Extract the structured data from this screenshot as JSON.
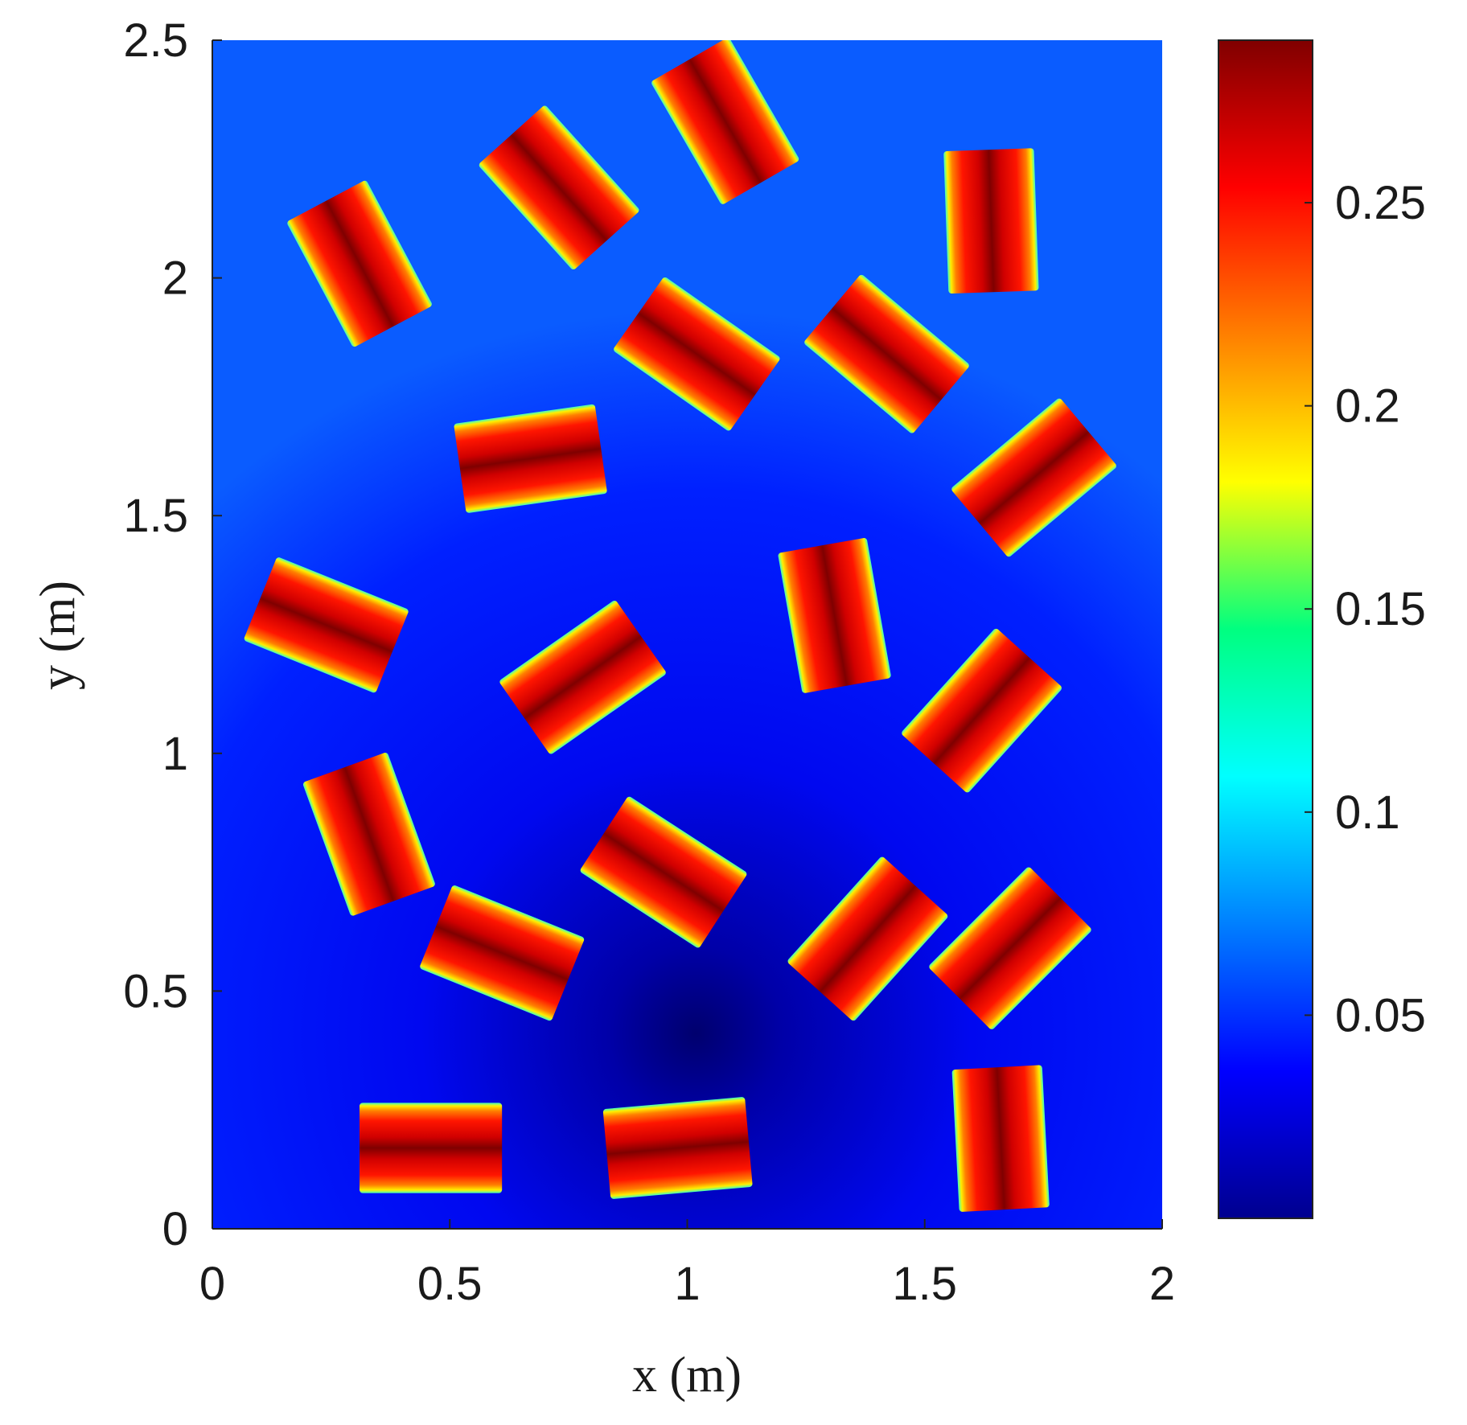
{
  "chart_data": {
    "type": "heatmap",
    "title": "",
    "xlabel": "x (m)",
    "ylabel": "y (m)",
    "xlim": [
      0,
      2
    ],
    "ylim": [
      0,
      2.5
    ],
    "x_ticks": [
      0,
      0.5,
      1,
      1.5,
      2
    ],
    "x_tick_labels": [
      "0",
      "0.5",
      "1",
      "1.5",
      "2"
    ],
    "y_ticks": [
      0,
      0.5,
      1,
      1.5,
      2,
      2.5
    ],
    "y_tick_labels": [
      "0",
      "0.5",
      "1",
      "1.5",
      "2",
      "2.5"
    ],
    "colorbar": {
      "colormap": "jet",
      "range": [
        0,
        0.29
      ],
      "ticks": [
        0.05,
        0.1,
        0.15,
        0.2,
        0.25
      ],
      "tick_labels": [
        "0.05",
        "0.1",
        "0.15",
        "0.2",
        "0.25"
      ]
    },
    "background": {
      "description": "low field, minimum near bottom centre",
      "min_location": [
        1.0,
        0.42
      ],
      "min_value": 0.005,
      "edge_value": 0.06
    },
    "inclusion_peak_value": 0.29,
    "inclusions": [
      {
        "cx": 0.31,
        "cy": 2.03,
        "width": 0.3,
        "height": 0.19,
        "angle_deg": -62
      },
      {
        "cx": 0.73,
        "cy": 2.19,
        "width": 0.3,
        "height": 0.19,
        "angle_deg": -48
      },
      {
        "cx": 1.08,
        "cy": 2.33,
        "width": 0.3,
        "height": 0.19,
        "angle_deg": -60
      },
      {
        "cx": 1.64,
        "cy": 2.12,
        "width": 0.3,
        "height": 0.19,
        "angle_deg": -88
      },
      {
        "cx": 1.02,
        "cy": 1.84,
        "width": 0.3,
        "height": 0.19,
        "angle_deg": -35
      },
      {
        "cx": 1.42,
        "cy": 1.84,
        "width": 0.3,
        "height": 0.19,
        "angle_deg": -40
      },
      {
        "cx": 0.67,
        "cy": 1.62,
        "width": 0.3,
        "height": 0.19,
        "angle_deg": 8
      },
      {
        "cx": 1.73,
        "cy": 1.58,
        "width": 0.3,
        "height": 0.19,
        "angle_deg": 40
      },
      {
        "cx": 0.24,
        "cy": 1.27,
        "width": 0.3,
        "height": 0.19,
        "angle_deg": -22
      },
      {
        "cx": 1.31,
        "cy": 1.29,
        "width": 0.3,
        "height": 0.19,
        "angle_deg": -80
      },
      {
        "cx": 0.78,
        "cy": 1.16,
        "width": 0.3,
        "height": 0.19,
        "angle_deg": 35
      },
      {
        "cx": 1.62,
        "cy": 1.09,
        "width": 0.3,
        "height": 0.19,
        "angle_deg": 48
      },
      {
        "cx": 0.33,
        "cy": 0.83,
        "width": 0.3,
        "height": 0.19,
        "angle_deg": -70
      },
      {
        "cx": 0.95,
        "cy": 0.75,
        "width": 0.3,
        "height": 0.19,
        "angle_deg": -33
      },
      {
        "cx": 0.61,
        "cy": 0.58,
        "width": 0.3,
        "height": 0.19,
        "angle_deg": -22
      },
      {
        "cx": 1.38,
        "cy": 0.61,
        "width": 0.3,
        "height": 0.19,
        "angle_deg": 48
      },
      {
        "cx": 1.68,
        "cy": 0.59,
        "width": 0.3,
        "height": 0.19,
        "angle_deg": 45
      },
      {
        "cx": 1.66,
        "cy": 0.19,
        "width": 0.3,
        "height": 0.19,
        "angle_deg": -87
      },
      {
        "cx": 0.46,
        "cy": 0.17,
        "width": 0.3,
        "height": 0.19,
        "angle_deg": 0
      },
      {
        "cx": 0.98,
        "cy": 0.17,
        "width": 0.3,
        "height": 0.19,
        "angle_deg": 5
      }
    ]
  }
}
